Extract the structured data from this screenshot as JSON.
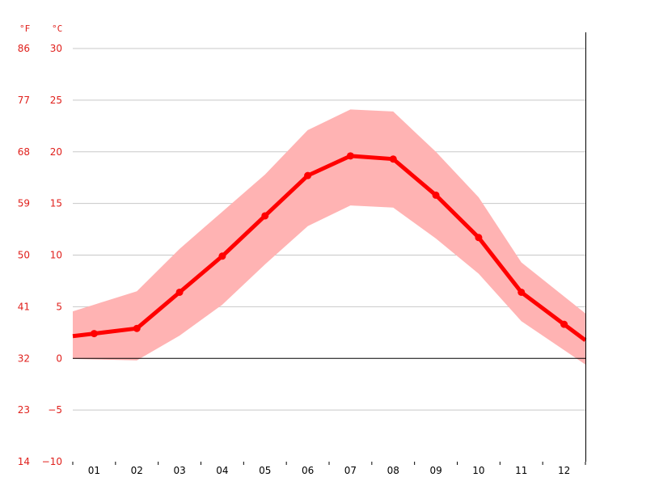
{
  "chart_data": {
    "type": "line",
    "title": "",
    "xlabel": "",
    "ylabel": "",
    "categories": [
      "01",
      "02",
      "03",
      "04",
      "05",
      "06",
      "07",
      "08",
      "09",
      "10",
      "11",
      "12"
    ],
    "unit_f": "°F",
    "unit_c": "°C",
    "ylim": [
      -10,
      30
    ],
    "y_ticks_c": [
      "30",
      "25",
      "20",
      "15",
      "10",
      "5",
      "0",
      "−5",
      "−10"
    ],
    "y_ticks_f": [
      "86",
      "77",
      "68",
      "59",
      "50",
      "41",
      "32",
      "23",
      "14"
    ],
    "grid": true,
    "series": [
      {
        "values": [
          2.4,
          2.9,
          6.4,
          9.9,
          13.8,
          17.7,
          19.6,
          19.3,
          15.8,
          11.7,
          6.4,
          3.3
        ]
      },
      {
        "values": [
          5.2,
          6.5,
          10.6,
          14.2,
          17.8,
          22.1,
          24.1,
          23.9,
          20.0,
          15.6,
          9.3,
          6.0
        ]
      },
      {
        "values": [
          -0.1,
          -0.2,
          2.2,
          5.2,
          9.1,
          12.8,
          14.8,
          14.6,
          11.6,
          8.2,
          3.6,
          0.8
        ]
      }
    ],
    "colors": {
      "line": "#ff0000",
      "band": "#ffb3b3",
      "grid": "#c8c8c8",
      "axis": "#000000",
      "label": "#e0201c"
    }
  }
}
